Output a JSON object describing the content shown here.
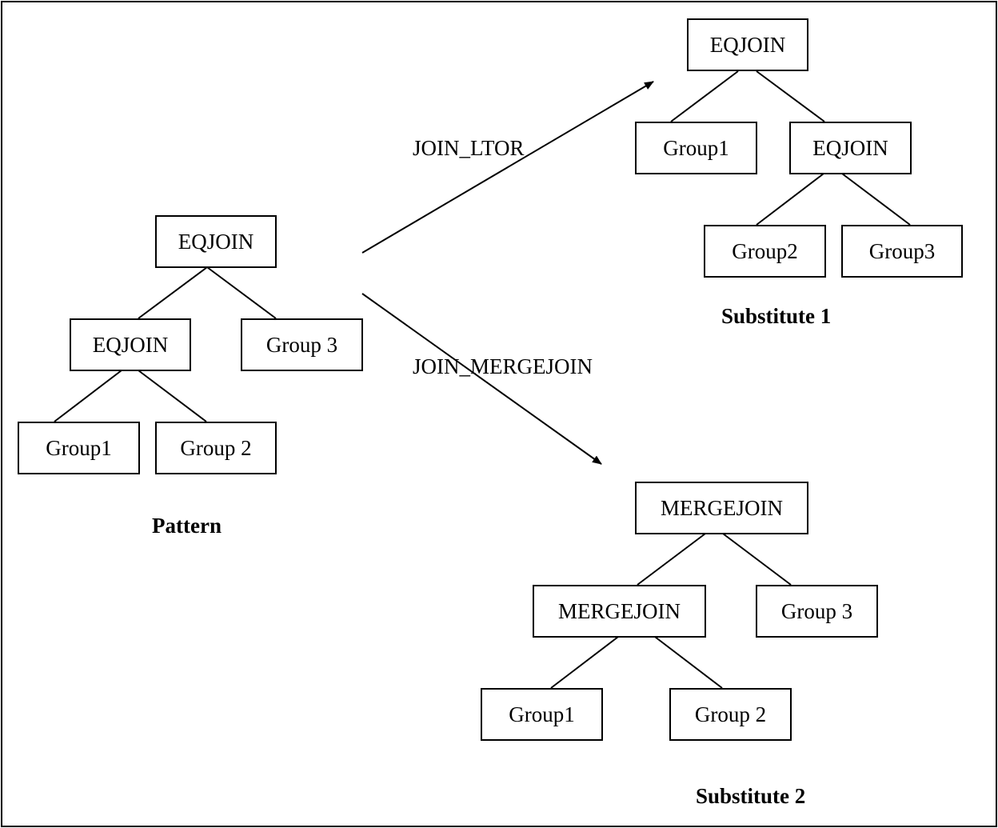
{
  "pattern": {
    "caption": "Pattern",
    "root": "EQJOIN",
    "left_join": "EQJOIN",
    "right_group": "Group 3",
    "leaf_left": "Group1",
    "leaf_right": "Group 2"
  },
  "substitute1": {
    "caption": "Substitute 1",
    "root": "EQJOIN",
    "left_group": "Group1",
    "right_join": "EQJOIN",
    "leaf_left": "Group2",
    "leaf_right": "Group3"
  },
  "substitute2": {
    "caption": "Substitute 2",
    "root": "MERGEJOIN",
    "left_join": "MERGEJOIN",
    "right_group": "Group 3",
    "leaf_left": "Group1",
    "leaf_right": "Group 2"
  },
  "rules": {
    "to_substitute1": "JOIN_LTOR",
    "to_substitute2": "JOIN_MERGEJOIN"
  }
}
